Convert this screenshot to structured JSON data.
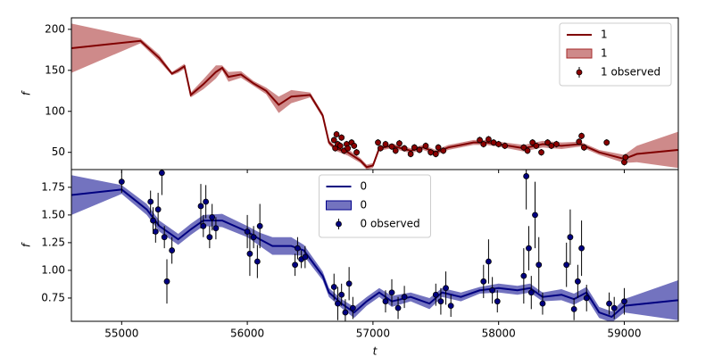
{
  "chart_data": [
    {
      "type": "line",
      "ylabel": "f",
      "xlim": [
        54600,
        59430
      ],
      "ylim": [
        29,
        214
      ],
      "yticks": [
        50,
        100,
        150,
        200
      ],
      "legend": "upper right",
      "series": [
        {
          "type": "line",
          "name": "1",
          "color": "#800000",
          "x": [
            54600,
            55150,
            55300,
            55400,
            55450,
            55500,
            55550,
            55650,
            55750,
            55800,
            55850,
            55950,
            56050,
            56150,
            56250,
            56350,
            56500,
            56600,
            56650,
            56700,
            56800,
            56900,
            56950,
            57000,
            57050,
            57150,
            57300,
            57400,
            57500,
            57600,
            57800,
            57900,
            58000,
            58200,
            58350,
            58500,
            58650,
            58800,
            59000,
            59100,
            59426
          ],
          "values": [
            177,
            186,
            165,
            146,
            150,
            155,
            120,
            133,
            148,
            153,
            142,
            145,
            134,
            125,
            108,
            118,
            120,
            95,
            62,
            55,
            50,
            40,
            32,
            34,
            55,
            58,
            52,
            56,
            50,
            56,
            62,
            62,
            60,
            55,
            60,
            58,
            60,
            50,
            42,
            48,
            53
          ]
        },
        {
          "type": "band",
          "name": "1",
          "color": "#a52a2a",
          "x": [
            54600,
            55150,
            55300,
            55400,
            55450,
            55500,
            55550,
            55650,
            55750,
            55800,
            55850,
            55950,
            56050,
            56150,
            56250,
            56350,
            56500,
            56600,
            56650,
            56700,
            56800,
            56900,
            56950,
            57000,
            57050,
            57150,
            57300,
            57400,
            57500,
            57600,
            57800,
            57900,
            58000,
            58200,
            58350,
            58500,
            58650,
            58800,
            59000,
            59100,
            59426
          ],
          "lower": [
            147,
            183,
            161,
            144,
            147,
            152,
            117,
            127,
            140,
            150,
            136,
            141,
            131,
            121,
            98,
            110,
            117,
            92,
            59,
            52,
            46,
            37,
            29,
            31,
            52,
            55,
            49,
            53,
            47,
            53,
            59,
            59,
            57,
            51,
            56,
            54,
            57,
            47,
            37,
            38,
            31
          ],
          "upper": [
            207,
            189,
            169,
            148,
            153,
            158,
            123,
            139,
            156,
            156,
            148,
            149,
            137,
            129,
            118,
            126,
            123,
            98,
            65,
            58,
            54,
            43,
            35,
            37,
            58,
            61,
            55,
            59,
            53,
            59,
            65,
            65,
            63,
            59,
            64,
            62,
            63,
            53,
            47,
            58,
            75
          ]
        },
        {
          "type": "errorbar",
          "name": "1 observed",
          "color": "#8b0000",
          "x": [
            56690,
            56700,
            56710,
            56720,
            56740,
            56750,
            56770,
            56790,
            56800,
            56830,
            56850,
            56870,
            57040,
            57060,
            57100,
            57150,
            57180,
            57210,
            57250,
            57300,
            57330,
            57370,
            57420,
            57460,
            57500,
            57520,
            57560,
            57850,
            57880,
            57920,
            57960,
            58000,
            58050,
            58200,
            58230,
            58270,
            58300,
            58340,
            58390,
            58420,
            58460,
            58640,
            58660,
            58680,
            58860,
            59000,
            59010
          ],
          "values": [
            65,
            55,
            72,
            60,
            58,
            68,
            52,
            60,
            55,
            62,
            58,
            50,
            62,
            55,
            60,
            57,
            52,
            61,
            55,
            48,
            56,
            53,
            58,
            50,
            48,
            56,
            52,
            65,
            60,
            66,
            62,
            60,
            58,
            56,
            52,
            62,
            58,
            50,
            62,
            58,
            60,
            63,
            70,
            56,
            62,
            38,
            44
          ],
          "errors": [
            4,
            4,
            4,
            4,
            4,
            4,
            4,
            4,
            4,
            4,
            4,
            4,
            4,
            4,
            4,
            4,
            4,
            4,
            4,
            4,
            4,
            4,
            4,
            4,
            4,
            4,
            4,
            4,
            4,
            4,
            4,
            4,
            4,
            4,
            4,
            4,
            4,
            4,
            4,
            4,
            4,
            4,
            4,
            4,
            4,
            4,
            4
          ]
        }
      ]
    },
    {
      "type": "line",
      "ylabel": "f",
      "xlabel": "t",
      "xlim": [
        54600,
        59430
      ],
      "ylim": [
        0.54,
        1.91
      ],
      "xticks": [
        55000,
        56000,
        57000,
        58000,
        59000
      ],
      "yticks": [
        0.75,
        {
          "value": 1.0,
          "label": "1.00"
        },
        1.25,
        {
          "value": 1.5,
          "label": "1.50"
        },
        1.75
      ],
      "legend": "upper center",
      "series": [
        {
          "type": "line",
          "name": "0",
          "color": "#000080",
          "x": [
            54600,
            55000,
            55200,
            55300,
            55450,
            55550,
            55650,
            55800,
            56000,
            56100,
            56200,
            56350,
            56450,
            56600,
            56650,
            56750,
            56850,
            56950,
            57050,
            57150,
            57300,
            57450,
            57550,
            57700,
            57850,
            58000,
            58150,
            58250,
            58350,
            58500,
            58600,
            58700,
            58800,
            58900,
            59000,
            59426
          ],
          "values": [
            1.68,
            1.73,
            1.55,
            1.4,
            1.28,
            1.37,
            1.45,
            1.45,
            1.35,
            1.28,
            1.22,
            1.22,
            1.18,
            0.95,
            0.8,
            0.7,
            0.62,
            0.72,
            0.8,
            0.72,
            0.76,
            0.7,
            0.8,
            0.76,
            0.82,
            0.84,
            0.82,
            0.84,
            0.76,
            0.78,
            0.74,
            0.8,
            0.62,
            0.58,
            0.68,
            0.73
          ]
        },
        {
          "type": "band",
          "name": "0",
          "color": "#00008b",
          "x": [
            54600,
            55000,
            55200,
            55300,
            55450,
            55550,
            55650,
            55800,
            56000,
            56100,
            56200,
            56350,
            56450,
            56600,
            56650,
            56750,
            56850,
            56950,
            57050,
            57150,
            57300,
            57450,
            57550,
            57700,
            57850,
            58000,
            58150,
            58250,
            58350,
            58500,
            58600,
            58700,
            58800,
            58900,
            59000,
            59426
          ],
          "lower": [
            1.5,
            1.69,
            1.5,
            1.35,
            1.23,
            1.32,
            1.4,
            1.39,
            1.3,
            1.22,
            1.14,
            1.14,
            1.13,
            0.91,
            0.76,
            0.66,
            0.57,
            0.68,
            0.76,
            0.67,
            0.72,
            0.65,
            0.76,
            0.72,
            0.79,
            0.8,
            0.78,
            0.8,
            0.72,
            0.73,
            0.69,
            0.75,
            0.57,
            0.53,
            0.62,
            0.55
          ],
          "upper": [
            1.86,
            1.77,
            1.6,
            1.45,
            1.33,
            1.42,
            1.5,
            1.51,
            1.4,
            1.34,
            1.3,
            1.3,
            1.23,
            0.99,
            0.84,
            0.74,
            0.67,
            0.76,
            0.84,
            0.77,
            0.8,
            0.75,
            0.84,
            0.8,
            0.85,
            0.88,
            0.86,
            0.88,
            0.8,
            0.83,
            0.79,
            0.85,
            0.67,
            0.63,
            0.74,
            0.91
          ]
        },
        {
          "type": "errorbar",
          "name": "0 observed",
          "color": "#000080",
          "x": [
            55000,
            55230,
            55250,
            55270,
            55290,
            55320,
            55340,
            55360,
            55400,
            55630,
            55650,
            55670,
            55700,
            55720,
            55750,
            56000,
            56020,
            56050,
            56080,
            56100,
            56380,
            56400,
            56430,
            56460,
            56690,
            56720,
            56750,
            56780,
            56810,
            56840,
            57100,
            57150,
            57200,
            57250,
            57500,
            57540,
            57580,
            57620,
            57880,
            57920,
            57950,
            57990,
            58200,
            58220,
            58240,
            58260,
            58290,
            58320,
            58350,
            58540,
            58570,
            58600,
            58630,
            58660,
            58700,
            58880,
            58920,
            59000
          ],
          "values": [
            1.8,
            1.62,
            1.45,
            1.35,
            1.55,
            1.88,
            1.3,
            0.9,
            1.18,
            1.58,
            1.4,
            1.62,
            1.3,
            1.48,
            1.38,
            1.35,
            1.15,
            1.3,
            1.08,
            1.4,
            1.05,
            1.2,
            1.1,
            1.12,
            0.85,
            0.7,
            0.78,
            0.62,
            0.88,
            0.66,
            0.72,
            0.8,
            0.66,
            0.76,
            0.78,
            0.72,
            0.84,
            0.68,
            0.9,
            1.08,
            0.82,
            0.72,
            0.95,
            1.85,
            1.2,
            0.8,
            1.5,
            1.05,
            0.7,
            1.05,
            1.3,
            0.65,
            0.9,
            1.2,
            0.75,
            0.7,
            0.66,
            0.72
          ],
          "errors": [
            0.1,
            0.1,
            0.12,
            0.1,
            0.15,
            0.2,
            0.1,
            0.2,
            0.12,
            0.2,
            0.1,
            0.15,
            0.1,
            0.12,
            0.1,
            0.15,
            0.2,
            0.1,
            0.15,
            0.2,
            0.1,
            0.1,
            0.08,
            0.1,
            0.12,
            0.15,
            0.1,
            0.12,
            0.15,
            0.1,
            0.1,
            0.12,
            0.1,
            0.1,
            0.1,
            0.12,
            0.15,
            0.1,
            0.15,
            0.2,
            0.12,
            0.1,
            0.25,
            0.3,
            0.2,
            0.15,
            0.3,
            0.25,
            0.1,
            0.2,
            0.25,
            0.1,
            0.15,
            0.25,
            0.12,
            0.1,
            0.1,
            0.12
          ]
        }
      ]
    }
  ]
}
